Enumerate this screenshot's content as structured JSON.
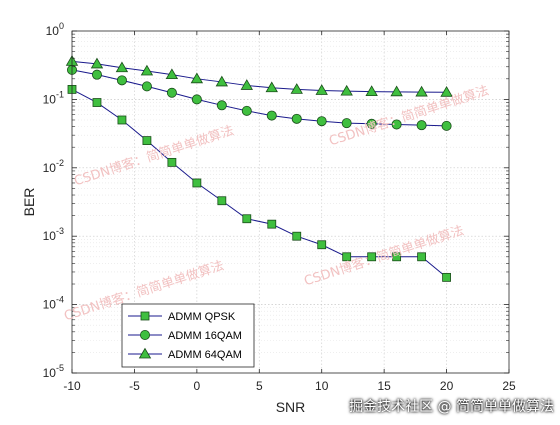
{
  "chart_data": {
    "type": "line",
    "xlabel": "SNR",
    "ylabel": "BER",
    "yscale": "log",
    "xlim": [
      -10,
      25
    ],
    "ylim": [
      1e-05,
      1
    ],
    "xticks": [
      "-10",
      "-5",
      "0",
      "5",
      "10",
      "15",
      "20",
      "25"
    ],
    "yticks": [
      {
        "base": "10",
        "exp": "0"
      },
      {
        "base": "10",
        "exp": "-1"
      },
      {
        "base": "10",
        "exp": "-2"
      },
      {
        "base": "10",
        "exp": "-3"
      },
      {
        "base": "10",
        "exp": "-4"
      },
      {
        "base": "10",
        "exp": "-5"
      }
    ],
    "grid": true,
    "legend_position": "bottom-left",
    "line_color": "#1a1a8c",
    "marker_fill": "#3fbf3f",
    "series": [
      {
        "name": "ADMM QPSK",
        "marker": "square",
        "x": [
          -10,
          -8,
          -6,
          -4,
          -2,
          0,
          2,
          4,
          6,
          8,
          10,
          12,
          14,
          16,
          18,
          20
        ],
        "y": [
          0.14,
          0.09,
          0.05,
          0.025,
          0.012,
          0.006,
          0.0033,
          0.0018,
          0.0015,
          0.001,
          0.00075,
          0.0005,
          0.0005,
          0.0005,
          0.0005,
          0.00025
        ]
      },
      {
        "name": "ADMM 16QAM",
        "marker": "circle",
        "x": [
          -10,
          -8,
          -6,
          -4,
          -2,
          0,
          2,
          4,
          6,
          8,
          10,
          12,
          14,
          16,
          18,
          20
        ],
        "y": [
          0.27,
          0.23,
          0.19,
          0.155,
          0.125,
          0.1,
          0.082,
          0.068,
          0.058,
          0.052,
          0.048,
          0.045,
          0.044,
          0.043,
          0.042,
          0.041
        ]
      },
      {
        "name": "ADMM 64QAM",
        "marker": "triangle",
        "x": [
          -10,
          -8,
          -6,
          -4,
          -2,
          0,
          2,
          4,
          6,
          8,
          10,
          12,
          14,
          16,
          18,
          20
        ],
        "y": [
          0.36,
          0.33,
          0.29,
          0.26,
          0.23,
          0.2,
          0.18,
          0.16,
          0.148,
          0.14,
          0.135,
          0.132,
          0.13,
          0.129,
          0.128,
          0.127
        ]
      }
    ]
  },
  "watermarks": [
    "CSDN博客：简简单单做算法",
    "CSDN博客：简简单单做算法",
    "CSDN博客：简简单单做算法",
    "CSDN博客：简简单单做算法"
  ],
  "footer_text": "掘金技术社区 @ 简简单单做算法"
}
